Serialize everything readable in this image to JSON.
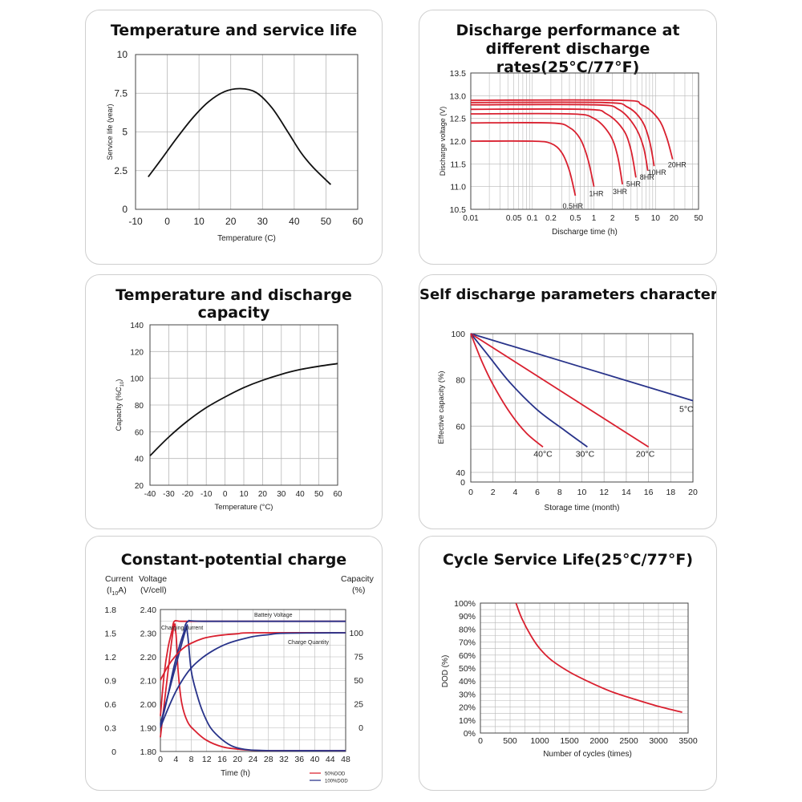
{
  "colors": {
    "red": "#d9202f",
    "blue": "#28338a",
    "black": "#111111",
    "grid": "#b8b8b8",
    "frame": "#444444"
  },
  "chart_data": [
    {
      "id": "c1",
      "type": "line",
      "title": "Temperature and service life",
      "xlabel": "Temperature (C)",
      "ylabel": "Service life (year)",
      "xlim": [
        -10,
        60
      ],
      "ylim": [
        0,
        10
      ],
      "xticks": [
        -10,
        0,
        10,
        20,
        30,
        40,
        50,
        60
      ],
      "yticks": [
        0,
        2.5,
        5,
        7.5,
        10
      ],
      "xtick_labels": [
        "-10",
        "0",
        "10",
        "20",
        "30",
        "40",
        "50",
        "60"
      ],
      "ytick_labels": [
        "0",
        "2.5",
        "5",
        "7.5",
        "10"
      ],
      "grid": true,
      "series": [
        {
          "color": "black",
          "x": [
            -6,
            -2,
            3,
            8,
            13,
            18,
            23,
            28,
            33,
            38,
            42,
            46,
            51.5
          ],
          "y": [
            2.1,
            3.2,
            4.6,
            5.9,
            6.95,
            7.6,
            7.8,
            7.55,
            6.55,
            5.0,
            3.7,
            2.7,
            1.6
          ]
        }
      ]
    },
    {
      "id": "c2",
      "type": "line",
      "title": "Discharge performance at different discharge rates(25°C/77°F)",
      "title_lines": [
        "Discharge performance at",
        "different discharge rates(25°C/77°F)"
      ],
      "xlabel": "Discharge time (h)",
      "ylabel": "Discharge voltage (V)",
      "x_scale": "log",
      "xlim": [
        0.01,
        50
      ],
      "ylim": [
        10.5,
        13.5
      ],
      "xticks": [
        0.01,
        0.05,
        0.1,
        0.2,
        0.5,
        1,
        2,
        5,
        10,
        20,
        50
      ],
      "xtick_labels": [
        "0.01",
        "0.05",
        "0.1",
        "0.2",
        "0.5",
        "1",
        "2",
        "5",
        "10",
        "20",
        "50"
      ],
      "yticks": [
        10.5,
        11.0,
        11.5,
        12.0,
        12.5,
        13.0,
        13.5
      ],
      "ytick_labels": [
        "10.5",
        "11.0",
        "11.5",
        "12.0",
        "12.5",
        "13.0",
        "13.5"
      ],
      "grid": true,
      "series": [
        {
          "name": "0.5HR",
          "color": "red",
          "x": [
            0.01,
            0.1,
            0.2,
            0.3,
            0.4,
            0.5
          ],
          "y": [
            12.0,
            12.0,
            11.95,
            11.75,
            11.35,
            10.8
          ]
        },
        {
          "name": "1HR",
          "color": "red",
          "x": [
            0.01,
            0.2,
            0.4,
            0.6,
            0.8,
            1.0
          ],
          "y": [
            12.4,
            12.4,
            12.3,
            12.05,
            11.6,
            11.0
          ]
        },
        {
          "name": "3HR",
          "color": "red",
          "x": [
            0.01,
            0.4,
            1.0,
            1.8,
            2.4,
            2.9
          ],
          "y": [
            12.6,
            12.6,
            12.5,
            12.15,
            11.7,
            11.05
          ]
        },
        {
          "name": "5HR",
          "color": "red",
          "x": [
            0.01,
            0.7,
            1.6,
            3.0,
            4.0,
            4.8
          ],
          "y": [
            12.7,
            12.7,
            12.6,
            12.25,
            11.8,
            11.2
          ]
        },
        {
          "name": "8HR",
          "color": "red",
          "x": [
            0.01,
            1.0,
            2.5,
            4.5,
            6.3,
            7.5
          ],
          "y": [
            12.8,
            12.8,
            12.7,
            12.35,
            11.9,
            11.35
          ]
        },
        {
          "name": "10HR",
          "color": "red",
          "x": [
            0.01,
            1.4,
            3.5,
            6.0,
            8.0,
            9.5
          ],
          "y": [
            12.85,
            12.85,
            12.75,
            12.45,
            12.0,
            11.45
          ]
        },
        {
          "name": "20HR",
          "color": "red",
          "x": [
            0.01,
            2.5,
            6.0,
            11.0,
            15.0,
            19.0
          ],
          "y": [
            12.9,
            12.9,
            12.8,
            12.5,
            12.1,
            11.6
          ]
        }
      ]
    },
    {
      "id": "c3",
      "type": "line",
      "title": "Temperature and discharge capacity",
      "xlabel": "Temperature (°C)",
      "ylabel": "Capacity (%C",
      "ylabel_sub": "10",
      "ylabel_end": ")",
      "xlim": [
        -40,
        60
      ],
      "ylim": [
        20,
        140
      ],
      "xticks": [
        -40,
        -30,
        -20,
        -10,
        0,
        10,
        20,
        30,
        40,
        50,
        60
      ],
      "xtick_labels": [
        "-40",
        "-30",
        "-20",
        "-10",
        "0",
        "10",
        "20",
        "30",
        "40",
        "50",
        "60"
      ],
      "yticks": [
        20,
        40,
        60,
        80,
        100,
        120,
        140
      ],
      "ytick_labels": [
        "20",
        "40",
        "60",
        "80",
        "100",
        "120",
        "140"
      ],
      "grid": true,
      "series": [
        {
          "color": "black",
          "x": [
            -40,
            -30,
            -20,
            -10,
            0,
            10,
            20,
            30,
            40,
            50,
            60
          ],
          "y": [
            42,
            56,
            68,
            78,
            86,
            93,
            98.5,
            103,
            106.5,
            109,
            111
          ]
        }
      ]
    },
    {
      "id": "c4",
      "type": "line",
      "title": "Self discharge parameters characteristics",
      "xlabel": "Storage time (month)",
      "ylabel": "Effective capacity (%)",
      "xlim": [
        0,
        20
      ],
      "ylim": [
        40,
        100
      ],
      "xticks": [
        0,
        2,
        4,
        6,
        8,
        10,
        12,
        14,
        16,
        18,
        20
      ],
      "xtick_labels": [
        "0",
        "2",
        "4",
        "6",
        "8",
        "10",
        "12",
        "14",
        "16",
        "18",
        "20"
      ],
      "yticks": [
        40,
        60,
        80,
        100
      ],
      "ytick_labels": [
        "40",
        "60",
        "80",
        "100"
      ],
      "extra_bottom_label": "0",
      "grid": true,
      "series": [
        {
          "name": "5°C",
          "color": "blue",
          "x": [
            0,
            20
          ],
          "y": [
            100,
            71
          ]
        },
        {
          "name": "20°C",
          "color": "red",
          "x": [
            0,
            16
          ],
          "y": [
            100,
            51
          ]
        },
        {
          "name": "30°C",
          "color": "blue",
          "x": [
            0,
            1.5,
            3.5,
            6,
            8.5,
            10.5
          ],
          "y": [
            100,
            91,
            79,
            67,
            58,
            51
          ]
        },
        {
          "name": "40°C",
          "color": "red",
          "x": [
            0,
            1,
            2,
            3.5,
            5,
            6.5
          ],
          "y": [
            100,
            88,
            78,
            66,
            57,
            51
          ]
        }
      ]
    },
    {
      "id": "c5",
      "type": "line",
      "title": "Constant-potential charge",
      "xlabel": "Time (h)",
      "xlim": [
        0,
        48
      ],
      "xticks": [
        0,
        4,
        8,
        12,
        16,
        20,
        24,
        28,
        32,
        36,
        40,
        44,
        48
      ],
      "xtick_labels": [
        "0",
        "4",
        "8",
        "12",
        "16",
        "20",
        "24",
        "28",
        "32",
        "36",
        "40",
        "44",
        "48"
      ],
      "current_axis": {
        "header": [
          "Current",
          "(I",
          "10",
          "A)"
        ],
        "ticks": [
          "0",
          "0.3",
          "0.6",
          "0.9",
          "1.2",
          "1.5",
          "1.8"
        ],
        "range": [
          0,
          1.8
        ]
      },
      "voltage_axis": {
        "header": [
          "Voltage",
          "(V/cell)"
        ],
        "ticks": [
          "1.80",
          "1.90",
          "2.00",
          "2.10",
          "2.20",
          "2.30",
          "2.40"
        ],
        "range": [
          1.8,
          2.4
        ]
      },
      "capacity_axis": {
        "header": [
          "Capacity",
          "(%)"
        ],
        "ticks": [
          "0",
          "25",
          "50",
          "75",
          "100"
        ],
        "values": [
          0,
          25,
          50,
          75,
          100
        ]
      },
      "annotations": [
        "Battery Voltage",
        "Charging current",
        "Charge Quantity"
      ],
      "legend": [
        {
          "label": "50%DOD",
          "color": "red"
        },
        {
          "label": "100%DOD",
          "color": "blue"
        }
      ],
      "grid": true,
      "series": [
        {
          "name": "Charging current 50%DOD",
          "color": "red",
          "axis": "current",
          "x": [
            0,
            3.2,
            4.0,
            4.6,
            5.5,
            7,
            9,
            12,
            16,
            20,
            24,
            30,
            48
          ],
          "y": [
            0.18,
            1.5,
            1.5,
            1.02,
            0.62,
            0.38,
            0.26,
            0.14,
            0.06,
            0.03,
            0.015,
            0.01,
            0.01
          ]
        },
        {
          "name": "Charging current 100%DOD",
          "color": "blue",
          "axis": "current",
          "x": [
            0,
            6.3,
            7.0,
            8,
            9.5,
            11,
            13,
            16,
            19,
            23,
            30,
            48
          ],
          "y": [
            0.35,
            1.5,
            1.5,
            1.02,
            0.72,
            0.5,
            0.3,
            0.15,
            0.06,
            0.02,
            0.01,
            0.01
          ]
        },
        {
          "name": "Battery Voltage 50%DOD",
          "color": "red",
          "axis": "voltage",
          "x": [
            0,
            1,
            2,
            3,
            3.6,
            5.5,
            12,
            48
          ],
          "y": [
            1.95,
            2.13,
            2.24,
            2.31,
            2.35,
            2.35,
            2.35,
            2.35
          ]
        },
        {
          "name": "Battery Voltage 100%DOD",
          "color": "blue",
          "axis": "voltage",
          "x": [
            0,
            1,
            2,
            3,
            4,
            5,
            6,
            7.2,
            12,
            48
          ],
          "y": [
            1.91,
            1.97,
            2.04,
            2.12,
            2.19,
            2.25,
            2.3,
            2.35,
            2.35,
            2.35
          ]
        },
        {
          "name": "Charge Quantity 50%DOD",
          "color": "red",
          "axis": "capacity",
          "x": [
            0,
            2,
            4,
            6,
            8,
            11,
            14,
            17,
            20,
            24,
            48
          ],
          "y": [
            50,
            65,
            76,
            84,
            89,
            94,
            96.5,
            98,
            99,
            100,
            100
          ]
        },
        {
          "name": "Charge Quantity 100%DOD",
          "color": "blue",
          "axis": "capacity",
          "x": [
            0,
            2,
            4,
            6,
            8,
            11,
            14,
            17,
            20,
            24,
            28,
            32,
            48
          ],
          "y": [
            0,
            20,
            38,
            52,
            63,
            74,
            82,
            88,
            92,
            96,
            98,
            99.5,
            100
          ]
        }
      ]
    },
    {
      "id": "c6",
      "type": "line",
      "title": "Cycle Service Life(25°C/77°F)",
      "xlabel": "Number of cycles (times)",
      "ylabel": "DOD (%)",
      "xlim": [
        0,
        3500
      ],
      "ylim": [
        0,
        100
      ],
      "xticks": [
        0,
        500,
        1000,
        1500,
        2000,
        2500,
        3000,
        3500
      ],
      "xtick_labels": [
        "0",
        "500",
        "1000",
        "1500",
        "2000",
        "2500",
        "3000",
        "3500"
      ],
      "yticks": [
        0,
        10,
        20,
        30,
        40,
        50,
        60,
        70,
        80,
        90,
        100
      ],
      "ytick_labels": [
        "0%",
        "10%",
        "20%",
        "30%",
        "40%",
        "50%",
        "60%",
        "70%",
        "80%",
        "90%",
        "100%"
      ],
      "grid": true,
      "series": [
        {
          "color": "red",
          "x": [
            600,
            700,
            850,
            1000,
            1200,
            1500,
            1800,
            2200,
            2600,
            3000,
            3400
          ],
          "y": [
            100,
            88,
            75,
            65,
            56,
            47,
            40,
            32,
            26,
            20.5,
            16
          ]
        }
      ]
    }
  ]
}
